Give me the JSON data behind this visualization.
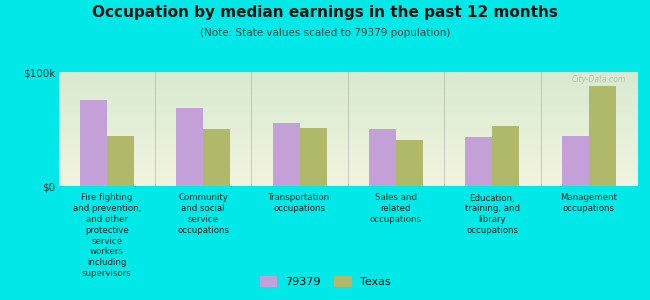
{
  "title": "Occupation by median earnings in the past 12 months",
  "subtitle": "(Note: State values scaled to 79379 population)",
  "categories": [
    "Fire fighting\nand prevention,\nand other\nprotective\nservice\nworkers\nincluding\nsupervisors",
    "Community\nand social\nservice\noccupations",
    "Transportation\noccupations",
    "Sales and\nrelated\noccupations",
    "Education,\ntraining, and\nlibrary\noccupations",
    "Management\noccupations"
  ],
  "values_79379": [
    75000,
    68000,
    55000,
    50000,
    43000,
    44000
  ],
  "values_texas": [
    44000,
    50000,
    51000,
    40000,
    53000,
    88000
  ],
  "ylim": [
    0,
    100000
  ],
  "yticks": [
    0,
    100000
  ],
  "ytick_labels": [
    "$0",
    "$100k"
  ],
  "color_79379": "#c4a0d8",
  "color_texas": "#b0b86a",
  "bg_color": "#00e8e8",
  "plot_bg_top": "#d8ead0",
  "plot_bg_bottom": "#f2f4e0",
  "bar_width": 0.28,
  "legend_labels": [
    "79379",
    "Texas"
  ],
  "watermark": "City-Data.com"
}
